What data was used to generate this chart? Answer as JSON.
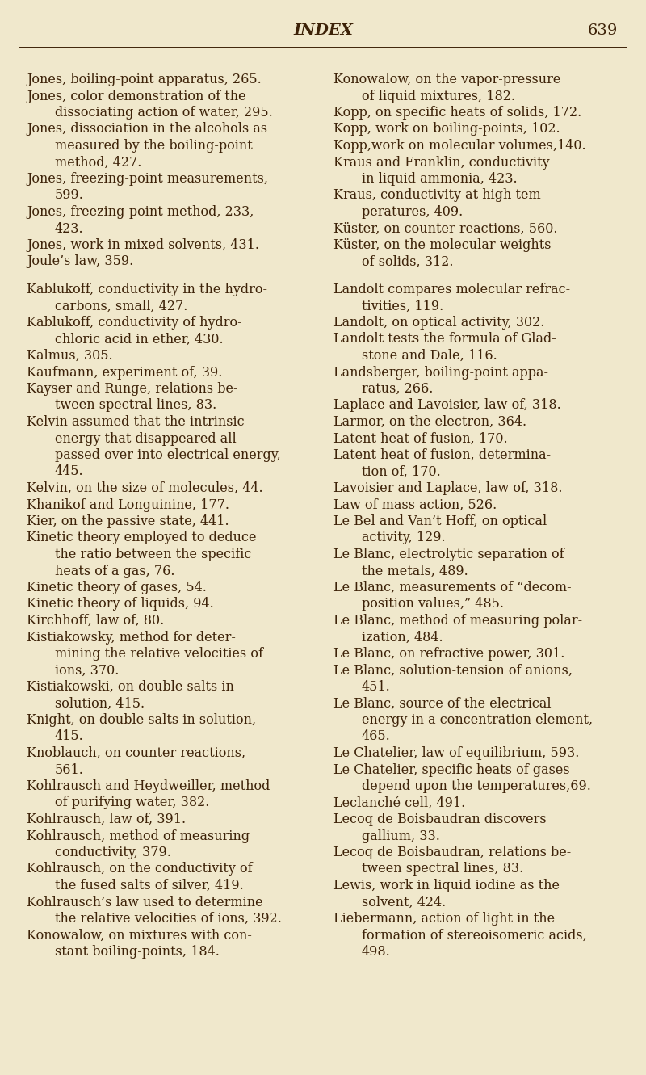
{
  "background_color": "#f0e8cc",
  "text_color": "#3d2208",
  "page_title": "INDEX",
  "page_number": "639",
  "title_fontsize": 14,
  "body_fontsize": 11.5,
  "left_column": [
    [
      "Jones, boiling-point apparatus, 265.",
      false
    ],
    [
      "Jones, color demonstration of the",
      false
    ],
    [
      "    dissociating action of water, 295.",
      true
    ],
    [
      "Jones, dissociation in the alcohols as",
      false
    ],
    [
      "    measured by the boiling-point",
      true
    ],
    [
      "    method, 427.",
      true
    ],
    [
      "Jones, freezing-point measurements,",
      false
    ],
    [
      "    599.",
      true
    ],
    [
      "Jones, freezing-point method, 233,",
      false
    ],
    [
      "    423.",
      true
    ],
    [
      "Jones, work in mixed solvents, 431.",
      false
    ],
    [
      "Joule’s law, 359.",
      false
    ],
    [
      "",
      false
    ],
    [
      "Kablukoff, conductivity in the hydro-",
      false
    ],
    [
      "    carbons, small, 427.",
      true
    ],
    [
      "Kablukoff, conductivity of hydro-",
      false
    ],
    [
      "    chloric acid in ether, 430.",
      true
    ],
    [
      "Kalmus, 305.",
      false
    ],
    [
      "Kaufmann, experiment of, 39.",
      false
    ],
    [
      "Kayser and Runge, relations be-",
      false
    ],
    [
      "    tween spectral lines, 83.",
      true
    ],
    [
      "Kelvin assumed that the intrinsic",
      false
    ],
    [
      "    energy that disappeared all",
      true
    ],
    [
      "    passed over into electrical energy,",
      true
    ],
    [
      "    445.",
      true
    ],
    [
      "Kelvin, on the size of molecules, 44.",
      false
    ],
    [
      "Khanikof and Longuinine, 177.",
      false
    ],
    [
      "Kier, on the passive state, 441.",
      false
    ],
    [
      "Kinetic theory employed to deduce",
      false
    ],
    [
      "    the ratio between the specific",
      true
    ],
    [
      "    heats of a gas, 76.",
      true
    ],
    [
      "Kinetic theory of gases, 54.",
      false
    ],
    [
      "Kinetic theory of liquids, 94.",
      false
    ],
    [
      "Kirchhoff, law of, 80.",
      false
    ],
    [
      "Kistiakowsky, method for deter-",
      false
    ],
    [
      "    mining the relative velocities of",
      true
    ],
    [
      "    ions, 370.",
      true
    ],
    [
      "Kistiakowski, on double salts in",
      false
    ],
    [
      "    solution, 415.",
      true
    ],
    [
      "Knight, on double salts in solution,",
      false
    ],
    [
      "    415.",
      true
    ],
    [
      "Knoblauch, on counter reactions,",
      false
    ],
    [
      "    561.",
      true
    ],
    [
      "Kohlrausch and Heydweiller, method",
      false
    ],
    [
      "    of purifying water, 382.",
      true
    ],
    [
      "Kohlrausch, law of, 391.",
      false
    ],
    [
      "Kohlrausch, method of measuring",
      false
    ],
    [
      "    conductivity, 379.",
      true
    ],
    [
      "Kohlrausch, on the conductivity of",
      false
    ],
    [
      "    the fused salts of silver, 419.",
      true
    ],
    [
      "Kohlrausch’s law used to determine",
      false
    ],
    [
      "    the relative velocities of ions, 392.",
      true
    ],
    [
      "Konowalow, on mixtures with con-",
      false
    ],
    [
      "    stant boiling-points, 184.",
      true
    ]
  ],
  "right_column": [
    [
      "Konowalow, on the vapor-pressure",
      false
    ],
    [
      "    of liquid mixtures, 182.",
      true
    ],
    [
      "Kopp, on specific heats of solids, 172.",
      false
    ],
    [
      "Kopp, work on boiling-points, 102.",
      false
    ],
    [
      "Kopp,work on molecular volumes,140.",
      false
    ],
    [
      "Kraus and Franklin, conductivity",
      false
    ],
    [
      "    in liquid ammonia, 423.",
      true
    ],
    [
      "Kraus, conductivity at high tem-",
      false
    ],
    [
      "    peratures, 409.",
      true
    ],
    [
      "Küster, on counter reactions, 560.",
      false
    ],
    [
      "Küster, on the molecular weights",
      false
    ],
    [
      "    of solids, 312.",
      true
    ],
    [
      "",
      false
    ],
    [
      "Landolt compares molecular refrac-",
      false
    ],
    [
      "    tivities, 119.",
      true
    ],
    [
      "Landolt, on optical activity, 302.",
      false
    ],
    [
      "Landolt tests the formula of Glad-",
      false
    ],
    [
      "    stone and Dale, 116.",
      true
    ],
    [
      "Landsberger, boiling-point appa-",
      false
    ],
    [
      "    ratus, 266.",
      true
    ],
    [
      "Laplace and Lavoisier, law of, 318.",
      false
    ],
    [
      "Larmor, on the electron, 364.",
      false
    ],
    [
      "Latent heat of fusion, 170.",
      false
    ],
    [
      "Latent heat of fusion, determina-",
      false
    ],
    [
      "    tion of, 170.",
      true
    ],
    [
      "Lavoisier and Laplace, law of, 318.",
      false
    ],
    [
      "Law of mass action, 526.",
      false
    ],
    [
      "Le Bel and Van’t Hoff, on optical",
      false
    ],
    [
      "    activity, 129.",
      true
    ],
    [
      "Le Blanc, electrolytic separation of",
      false
    ],
    [
      "    the metals, 489.",
      true
    ],
    [
      "Le Blanc, measurements of “decom-",
      false
    ],
    [
      "    position values,” 485.",
      true
    ],
    [
      "Le Blanc, method of measuring polar-",
      false
    ],
    [
      "    ization, 484.",
      true
    ],
    [
      "Le Blanc, on refractive power, 301.",
      false
    ],
    [
      "Le Blanc, solution-tension of anions,",
      false
    ],
    [
      "    451.",
      true
    ],
    [
      "Le Blanc, source of the electrical",
      false
    ],
    [
      "    energy in a concentration element,",
      true
    ],
    [
      "    465.",
      true
    ],
    [
      "Le Chatelier, law of equilibrium, 593.",
      false
    ],
    [
      "Le Chatelier, specific heats of gases",
      false
    ],
    [
      "    depend upon the temperatures,69.",
      true
    ],
    [
      "Leclanché cell, 491.",
      false
    ],
    [
      "Lecoq de Boisbaudran discovers",
      false
    ],
    [
      "    gallium, 33.",
      true
    ],
    [
      "Lecoq de Boisbaudran, relations be-",
      false
    ],
    [
      "    tween spectral lines, 83.",
      true
    ],
    [
      "Lewis, work in liquid iodine as the",
      false
    ],
    [
      "    solvent, 424.",
      true
    ],
    [
      "Liebermann, action of light in the",
      false
    ],
    [
      "    formation of stereoisomeric acids,",
      true
    ],
    [
      "    498.",
      true
    ]
  ]
}
